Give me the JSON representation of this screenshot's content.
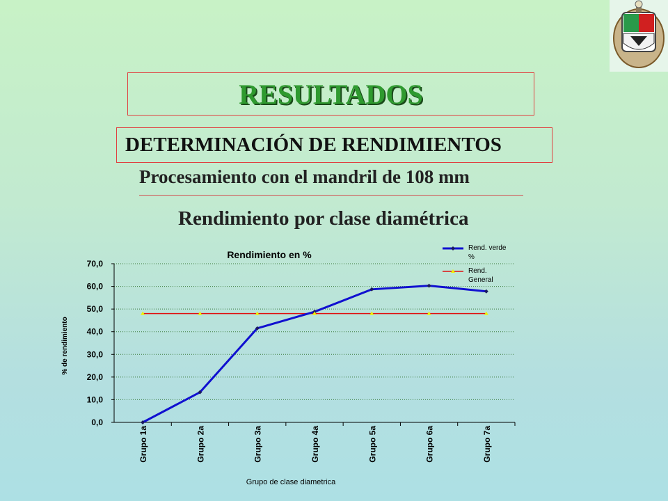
{
  "heading": "RESULTADOS",
  "subheading": "DETERMINACIÓN DE RENDIMIENTOS",
  "process_title": "Procesamiento con el mandril de 108 mm",
  "section_title": "Rendimiento por clase diamétrica",
  "logo": {
    "icon": "coat-of-arms-icon"
  },
  "chart_data": {
    "type": "line",
    "title": "Rendimiento en %",
    "xlabel": "Grupo de clase diametrica",
    "ylabel": "% de rendimiento",
    "categories": [
      "Grupo 1a",
      "Grupo 2a",
      "Grupo 3a",
      "Grupo 4a",
      "Grupo 5a",
      "Grupo 6a",
      "Grupo 7a"
    ],
    "ylim": [
      0,
      70
    ],
    "yticks": [
      "0,0",
      "10,0",
      "20,0",
      "30,0",
      "40,0",
      "50,0",
      "60,0",
      "70,0"
    ],
    "grid": true,
    "legend": "top-right",
    "series": [
      {
        "name": "Rend. verde %",
        "color": "#1010d0",
        "marker_color": "#1a1a60",
        "values": [
          0.0,
          13.3,
          41.5,
          48.8,
          58.7,
          60.3,
          57.8
        ]
      },
      {
        "name": "Rend. General",
        "color": "#e01010",
        "marker_color": "#f0f000",
        "values": [
          48.0,
          48.0,
          48.0,
          48.0,
          48.0,
          48.0,
          48.0
        ]
      }
    ]
  }
}
